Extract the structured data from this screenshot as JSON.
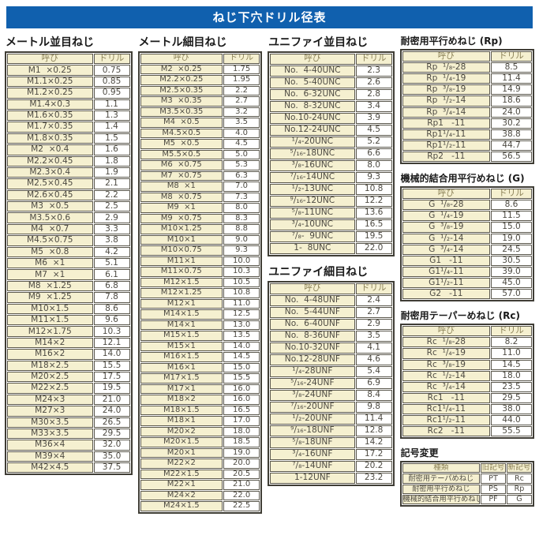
{
  "title": "ねじ下穴ドリル径表",
  "corner_mark": "--",
  "colors": {
    "title_bg": "#1060ae",
    "title_text": "#ffffff",
    "cell_bg_cream": "#f5f0d0",
    "cell_bg_white": "#ffffff",
    "header_text": "#8b8157",
    "cell_text": "#4e4b43",
    "border": "#3f3d35"
  },
  "tables": {
    "metric_coarse": {
      "heading": "メートル並目ねじ",
      "headers": [
        "呼び",
        "ドリル"
      ],
      "rows": [
        [
          "M1  ×0.25",
          "0.75"
        ],
        [
          "M1.1×0.25",
          "0.85"
        ],
        [
          "M1.2×0.25",
          "0.95"
        ],
        [
          "M1.4×0.3",
          "1.1"
        ],
        [
          "M1.6×0.35",
          "1.3"
        ],
        [
          "M1.7×0.35",
          "1.4"
        ],
        [
          "M1.8×0.35",
          "1.5"
        ],
        [
          "M2  ×0.4",
          "1.6"
        ],
        [
          "M2.2×0.45",
          "1.8"
        ],
        [
          "M2.3×0.4",
          "1.9"
        ],
        [
          "M2.5×0.45",
          "2.1"
        ],
        [
          "M2.6×0.45",
          "2.2"
        ],
        [
          "M3  ×0.5",
          "2.5"
        ],
        [
          "M3.5×0.6",
          "2.9"
        ],
        [
          "M4  ×0.7",
          "3.3"
        ],
        [
          "M4.5×0.75",
          "3.8"
        ],
        [
          "M5  ×0.8",
          "4.2"
        ],
        [
          "M6  ×1",
          "5.1"
        ],
        [
          "M7  ×1",
          "6.1"
        ],
        [
          "M8  ×1.25",
          "6.8"
        ],
        [
          "M9  ×1.25",
          "7.8"
        ],
        [
          "M10×1.5",
          "8.6"
        ],
        [
          "M11×1.5",
          "9.6"
        ],
        [
          "M12×1.75",
          "10.3"
        ],
        [
          "M14×2",
          "12.1"
        ],
        [
          "M16×2",
          "14.0"
        ],
        [
          "M18×2.5",
          "15.5"
        ],
        [
          "M20×2.5",
          "17.5"
        ],
        [
          "M22×2.5",
          "19.5"
        ],
        [
          "M24×3",
          "21.0"
        ],
        [
          "M27×3",
          "24.0"
        ],
        [
          "M30×3.5",
          "26.5"
        ],
        [
          "M33×3.5",
          "29.5"
        ],
        [
          "M36×4",
          "32.0"
        ],
        [
          "M39×4",
          "35.0"
        ],
        [
          "M42×4.5",
          "37.5"
        ]
      ]
    },
    "metric_fine": {
      "heading": "メートル細目ねじ",
      "headers": [
        "呼び",
        "ドリル"
      ],
      "rows": [
        [
          "M2  ×0.25",
          "1.75"
        ],
        [
          "M2.2×0.25",
          "1.95"
        ],
        [
          "M2.5×0.35",
          "2.2"
        ],
        [
          "M3  ×0.35",
          "2.7"
        ],
        [
          "M3.5×0.35",
          "3.2"
        ],
        [
          "M4  ×0.5",
          "3.5"
        ],
        [
          "M4.5×0.5",
          "4.0"
        ],
        [
          "M5  ×0.5",
          "4.5"
        ],
        [
          "M5.5×0.5",
          "5.0"
        ],
        [
          "M6  ×0.75",
          "5.3"
        ],
        [
          "M7  ×0.75",
          "6.3"
        ],
        [
          "M8  ×1",
          "7.0"
        ],
        [
          "M8  ×0.75",
          "7.3"
        ],
        [
          "M9  ×1",
          "8.0"
        ],
        [
          "M9  ×0.75",
          "8.3"
        ],
        [
          "M10×1.25",
          "8.8"
        ],
        [
          "M10×1",
          "9.0"
        ],
        [
          "M10×0.75",
          "9.3"
        ],
        [
          "M11×1",
          "10.0"
        ],
        [
          "M11×0.75",
          "10.3"
        ],
        [
          "M12×1.5",
          "10.5"
        ],
        [
          "M12×1.25",
          "10.8"
        ],
        [
          "M12×1",
          "11.0"
        ],
        [
          "M14×1.5",
          "12.5"
        ],
        [
          "M14×1",
          "13.0"
        ],
        [
          "M15×1.5",
          "13.5"
        ],
        [
          "M15×1",
          "14.0"
        ],
        [
          "M16×1.5",
          "14.5"
        ],
        [
          "M16×1",
          "15.0"
        ],
        [
          "M17×1.5",
          "15.5"
        ],
        [
          "M17×1",
          "16.0"
        ],
        [
          "M18×2",
          "16.0"
        ],
        [
          "M18×1.5",
          "16.5"
        ],
        [
          "M18×1",
          "17.0"
        ],
        [
          "M20×2",
          "18.0"
        ],
        [
          "M20×1.5",
          "18.5"
        ],
        [
          "M20×1",
          "19.0"
        ],
        [
          "M22×2",
          "20.0"
        ],
        [
          "M22×1.5",
          "20.5"
        ],
        [
          "M22×1",
          "21.0"
        ],
        [
          "M24×2",
          "22.0"
        ],
        [
          "M24×1.5",
          "22.5"
        ]
      ]
    },
    "unified_coarse": {
      "heading": "ユニファイ並目ねじ",
      "headers": [
        "呼び",
        "ドリル"
      ],
      "rows": [
        [
          "No.  4-40UNC",
          "2.3"
        ],
        [
          "No.  5-40UNC",
          "2.6"
        ],
        [
          "No.  6-32UNC",
          "2.8"
        ],
        [
          "No.  8-32UNC",
          "3.4"
        ],
        [
          "No.10-24UNC",
          "3.9"
        ],
        [
          "No.12-24UNC",
          "4.5"
        ],
        [
          "¹/₄-20UNC",
          "5.2"
        ],
        [
          "⁵/₁₆-18UNC",
          "6.6"
        ],
        [
          "³/₈-16UNC",
          "8.0"
        ],
        [
          "⁷/₁₆-14UNC",
          "9.3"
        ],
        [
          "¹/₂-13UNC",
          "10.8"
        ],
        [
          "⁹/₁₆-12UNC",
          "12.2"
        ],
        [
          "⁵/₈-11UNC",
          "13.6"
        ],
        [
          "³/₄-10UNC",
          "16.5"
        ],
        [
          "⁷/₈-  9UNC",
          "19.5"
        ],
        [
          "1-  8UNC",
          "22.0"
        ]
      ]
    },
    "unified_fine": {
      "heading": "ユニファイ細目ねじ",
      "headers": [
        "呼び",
        "ドリル"
      ],
      "rows": [
        [
          "No.  4-48UNF",
          "2.4"
        ],
        [
          "No.  5-44UNF",
          "2.7"
        ],
        [
          "No.  6-40UNF",
          "2.9"
        ],
        [
          "No.  8-36UNF",
          "3.5"
        ],
        [
          "No.10-32UNF",
          "4.1"
        ],
        [
          "No.12-28UNF",
          "4.6"
        ],
        [
          "¹/₄-28UNF",
          "5.4"
        ],
        [
          "⁵/₁₆-24UNF",
          "6.9"
        ],
        [
          "³/₈-24UNF",
          "8.4"
        ],
        [
          "⁷/₁₆-20UNF",
          "9.8"
        ],
        [
          "¹/₂-20UNF",
          "11.4"
        ],
        [
          "⁹/₁₆-18UNF",
          "12.8"
        ],
        [
          "⁵/₈-18UNF",
          "14.2"
        ],
        [
          "³/₄-16UNF",
          "17.2"
        ],
        [
          "⁷/₈-14UNF",
          "20.2"
        ],
        [
          "1-12UNF",
          "23.2"
        ]
      ]
    },
    "rp": {
      "heading": "耐密用平行めねじ (Rp)",
      "headers": [
        "呼び",
        "ドリル"
      ],
      "rows": [
        [
          "Rp  ¹/₈-28",
          "8.5"
        ],
        [
          "Rp  ¹/₄-19",
          "11.4"
        ],
        [
          "Rp  ³/₈-19",
          "14.9"
        ],
        [
          "Rp  ¹/₂-14",
          "18.6"
        ],
        [
          "Rp  ³/₄-14",
          "24.0"
        ],
        [
          "Rp1   -11",
          "30.2"
        ],
        [
          "Rp1¹/₄-11",
          "38.8"
        ],
        [
          "Rp1¹/₂-11",
          "44.7"
        ],
        [
          "Rp2   -11",
          "56.5"
        ]
      ]
    },
    "g": {
      "heading": "機械的結合用平行めねじ (G)",
      "headers": [
        "呼び",
        "ドリル"
      ],
      "rows": [
        [
          "G  ¹/₈-28",
          "8.6"
        ],
        [
          "G  ¹/₄-19",
          "11.5"
        ],
        [
          "G  ³/₈-19",
          "15.0"
        ],
        [
          "G  ¹/₂-14",
          "19.0"
        ],
        [
          "G  ³/₄-14",
          "24.5"
        ],
        [
          "G1   -11",
          "30.5"
        ],
        [
          "G1¹/₄-11",
          "39.0"
        ],
        [
          "G1¹/₂-11",
          "45.0"
        ],
        [
          "G2   -11",
          "57.0"
        ]
      ]
    },
    "rc": {
      "heading": "耐密用テーパーめねじ (Rc)",
      "headers": [
        "呼び",
        "ドリル"
      ],
      "rows": [
        [
          "Rc  ¹/₈-28",
          "8.2"
        ],
        [
          "Rc  ¹/₄-19",
          "11.0"
        ],
        [
          "Rc  ³/₈-19",
          "14.5"
        ],
        [
          "Rc  ¹/₂-14",
          "18.0"
        ],
        [
          "Rc  ³/₄-14",
          "23.5"
        ],
        [
          "Rc1   -11",
          "29.5"
        ],
        [
          "Rc1¹/₄-11",
          "38.0"
        ],
        [
          "Rc1¹/₂-11",
          "44.0"
        ],
        [
          "Rc2   -11",
          "55.5"
        ]
      ]
    },
    "symbol_change": {
      "heading": "記号変更",
      "headers": [
        "種類",
        "旧記号",
        "新記号"
      ],
      "rows": [
        [
          "耐密用テーパめねじ",
          "PT",
          "Rc"
        ],
        [
          "耐密用平行めねじ",
          "PS",
          "Rp"
        ],
        [
          "機械的結合用平行めねじ",
          "PF",
          "G"
        ]
      ]
    }
  }
}
